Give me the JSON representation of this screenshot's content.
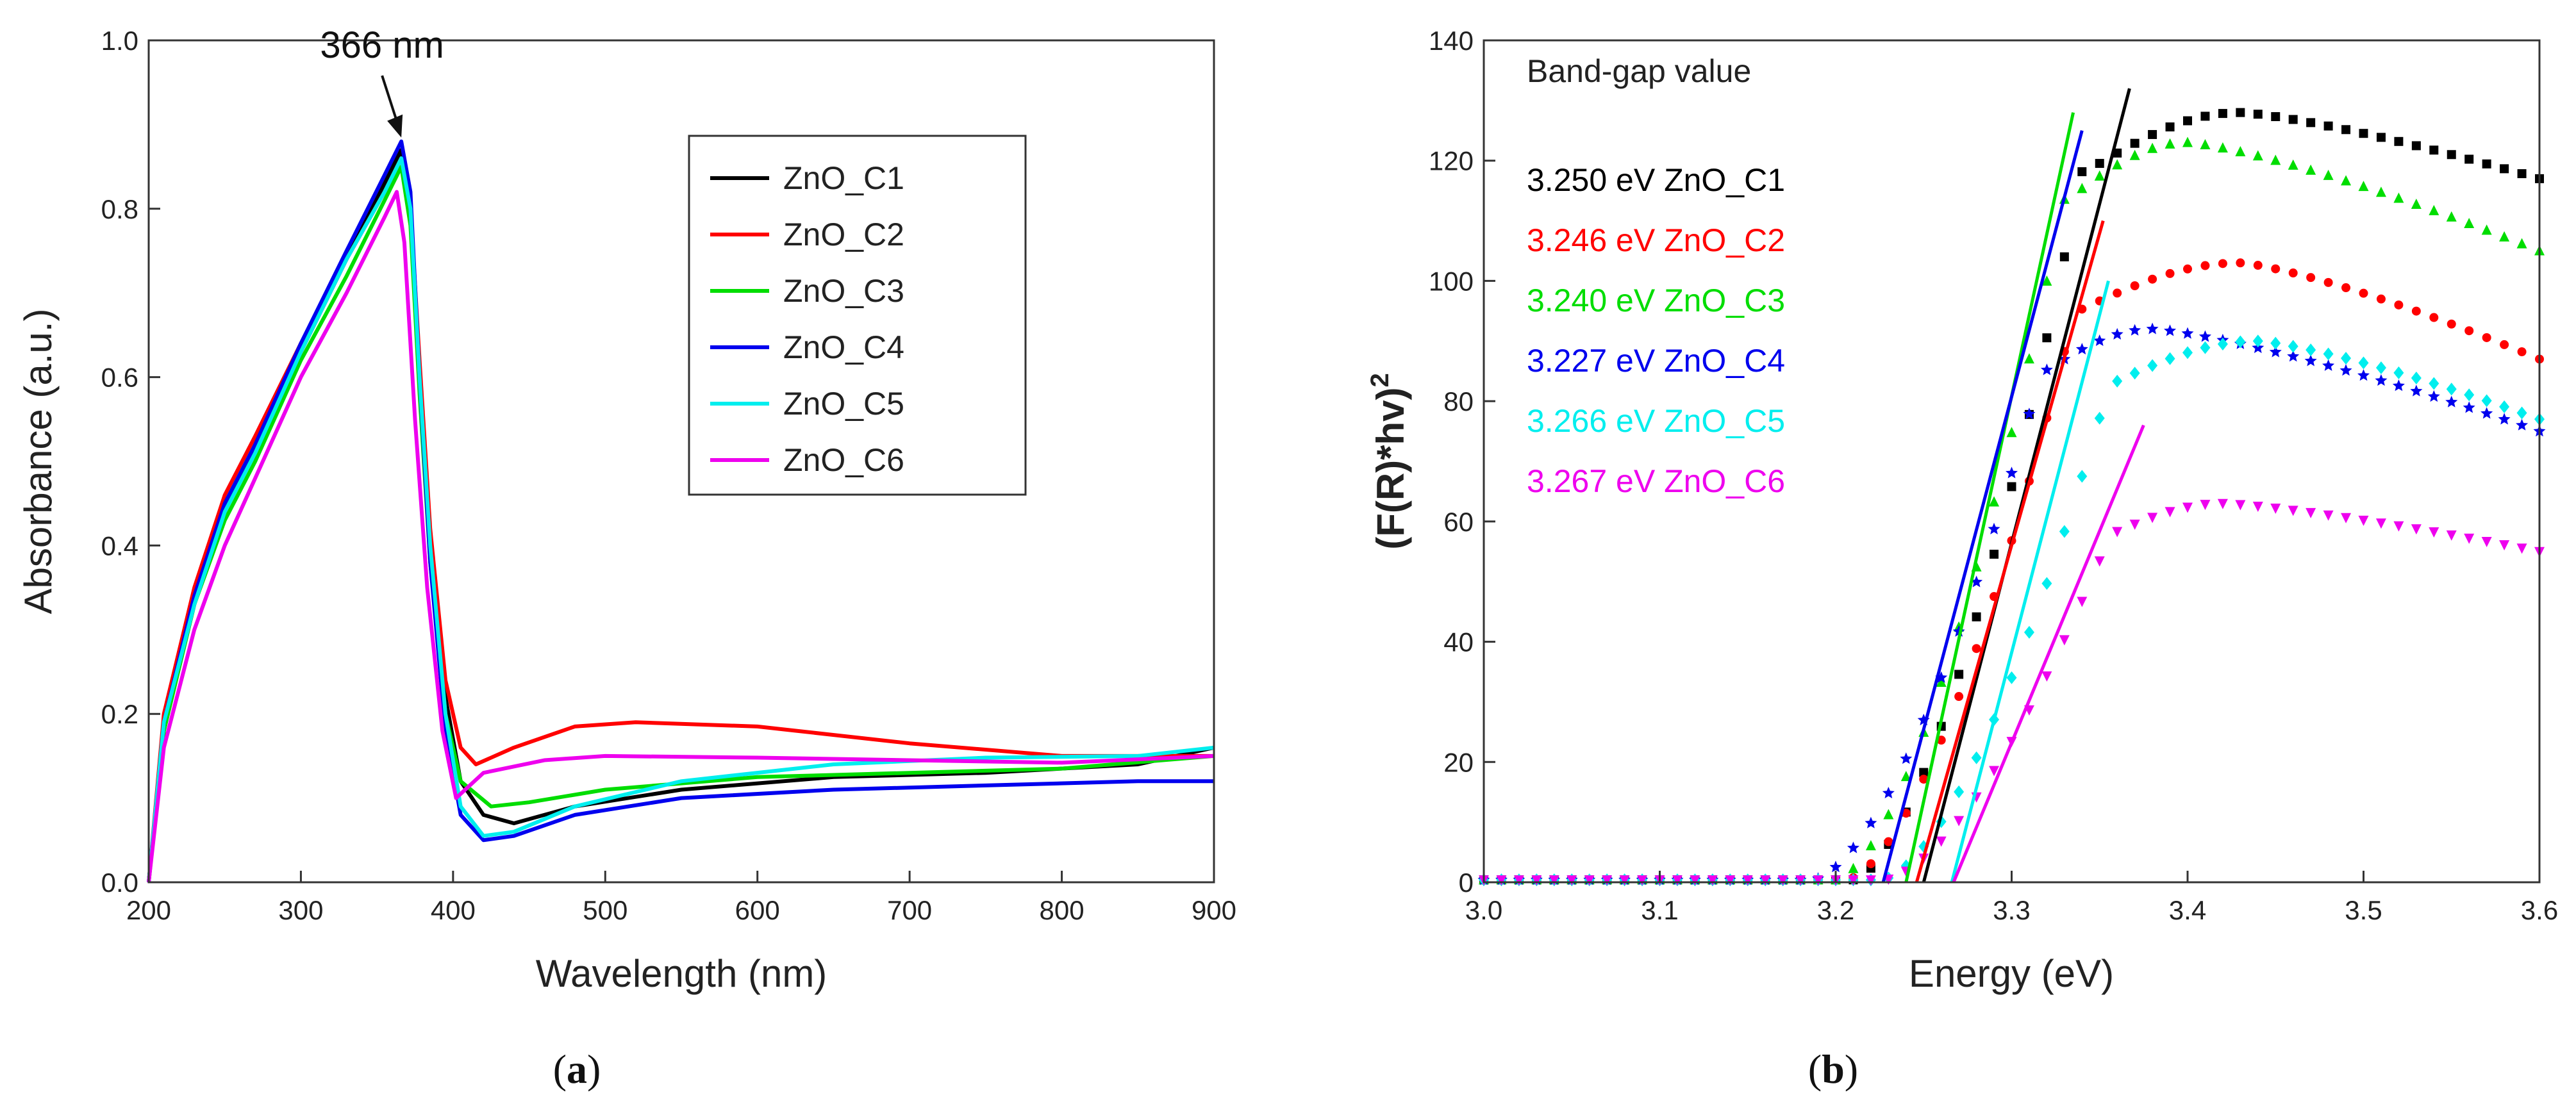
{
  "chart_data": [
    {
      "type": "line",
      "panel": "a",
      "caption_letter": "a",
      "xlabel": "Wavelength (nm)",
      "ylabel": "Absorbance (a.u.)",
      "xlim": [
        200,
        900
      ],
      "ylim": [
        0.0,
        1.0
      ],
      "xticks": [
        "200",
        "300",
        "400",
        "500",
        "600",
        "700",
        "800",
        "900"
      ],
      "yticks": [
        "0.0",
        "0.2",
        "0.4",
        "0.6",
        "0.8",
        "1.0"
      ],
      "annotation": {
        "text": "366 nm",
        "x": 366,
        "y": 0.88
      },
      "legend_position": "top-right",
      "series": [
        {
          "name": "ZnO_C1",
          "color": "#000000",
          "x": [
            200,
            210,
            230,
            250,
            270,
            300,
            330,
            355,
            366,
            372,
            378,
            385,
            395,
            405,
            420,
            440,
            480,
            550,
            650,
            750,
            850,
            900
          ],
          "y": [
            0.0,
            0.18,
            0.33,
            0.44,
            0.52,
            0.63,
            0.74,
            0.83,
            0.87,
            0.8,
            0.6,
            0.4,
            0.22,
            0.12,
            0.08,
            0.07,
            0.09,
            0.11,
            0.125,
            0.13,
            0.14,
            0.16
          ]
        },
        {
          "name": "ZnO_C2",
          "color": "#ff0000",
          "x": [
            200,
            210,
            230,
            250,
            270,
            300,
            330,
            355,
            366,
            372,
            378,
            385,
            395,
            405,
            415,
            440,
            480,
            520,
            600,
            700,
            800,
            900
          ],
          "y": [
            0.0,
            0.2,
            0.35,
            0.46,
            0.53,
            0.64,
            0.74,
            0.82,
            0.86,
            0.8,
            0.62,
            0.42,
            0.24,
            0.16,
            0.14,
            0.16,
            0.185,
            0.19,
            0.185,
            0.165,
            0.15,
            0.15
          ]
        },
        {
          "name": "ZnO_C3",
          "color": "#00dd00",
          "x": [
            200,
            210,
            230,
            250,
            270,
            300,
            330,
            355,
            366,
            372,
            378,
            385,
            395,
            405,
            425,
            450,
            500,
            600,
            700,
            800,
            900
          ],
          "y": [
            0.0,
            0.18,
            0.33,
            0.43,
            0.5,
            0.62,
            0.72,
            0.81,
            0.85,
            0.78,
            0.58,
            0.38,
            0.2,
            0.12,
            0.09,
            0.095,
            0.11,
            0.125,
            0.13,
            0.135,
            0.15
          ]
        },
        {
          "name": "ZnO_C4",
          "color": "#0000ee",
          "x": [
            200,
            210,
            230,
            250,
            270,
            300,
            330,
            355,
            366,
            372,
            378,
            385,
            395,
            405,
            420,
            440,
            480,
            550,
            650,
            750,
            850,
            900
          ],
          "y": [
            0.0,
            0.19,
            0.34,
            0.45,
            0.52,
            0.64,
            0.75,
            0.84,
            0.88,
            0.82,
            0.6,
            0.38,
            0.18,
            0.08,
            0.05,
            0.055,
            0.08,
            0.1,
            0.11,
            0.115,
            0.12,
            0.12
          ]
        },
        {
          "name": "ZnO_C5",
          "color": "#00eeee",
          "x": [
            200,
            210,
            230,
            250,
            270,
            300,
            330,
            355,
            366,
            372,
            378,
            385,
            395,
            405,
            420,
            440,
            480,
            550,
            650,
            750,
            850,
            900
          ],
          "y": [
            0.0,
            0.19,
            0.33,
            0.44,
            0.51,
            0.63,
            0.74,
            0.82,
            0.86,
            0.8,
            0.6,
            0.4,
            0.2,
            0.09,
            0.055,
            0.06,
            0.09,
            0.12,
            0.14,
            0.148,
            0.15,
            0.16
          ]
        },
        {
          "name": "ZnO_C6",
          "color": "#ee00ee",
          "x": [
            200,
            210,
            230,
            250,
            270,
            300,
            330,
            355,
            363,
            368,
            375,
            383,
            393,
            402,
            420,
            460,
            500,
            600,
            700,
            800,
            900
          ],
          "y": [
            0.0,
            0.16,
            0.3,
            0.4,
            0.48,
            0.6,
            0.7,
            0.79,
            0.82,
            0.76,
            0.55,
            0.35,
            0.18,
            0.1,
            0.13,
            0.145,
            0.15,
            0.148,
            0.145,
            0.142,
            0.15
          ]
        }
      ]
    },
    {
      "type": "scatter",
      "panel": "b",
      "caption_letter": "b",
      "xlabel": "Energy (eV)",
      "ylabel_main": "(F(R)*hv)",
      "ylabel_sup": "2",
      "xlim": [
        3.0,
        3.6
      ],
      "ylim": [
        0,
        140
      ],
      "xticks": [
        "3.0",
        "3.1",
        "3.2",
        "3.3",
        "3.4",
        "3.5",
        "3.6"
      ],
      "yticks": [
        "0",
        "20",
        "40",
        "60",
        "80",
        "100",
        "120",
        "140"
      ],
      "legend_title": "Band-gap value",
      "legend_position": "top-left",
      "series": [
        {
          "name": "ZnO_C1",
          "band_gap": "3.250 eV ZnO_C1",
          "color": "#000000",
          "marker": "square",
          "scale": 128,
          "eg": 3.25,
          "peak_x": 3.43,
          "end_y": 117,
          "fit_x": [
            3.25,
            3.367
          ],
          "fit_y": [
            0,
            132
          ]
        },
        {
          "name": "ZnO_C2",
          "band_gap": "3.246 eV ZnO_C2",
          "color": "#ff0000",
          "marker": "circle",
          "scale": 103,
          "eg": 3.246,
          "peak_x": 3.43,
          "end_y": 87,
          "fit_x": [
            3.246,
            3.352
          ],
          "fit_y": [
            0,
            110
          ]
        },
        {
          "name": "ZnO_C3",
          "band_gap": "3.240 eV ZnO_C3",
          "color": "#00dd00",
          "marker": "triangle-up",
          "scale": 123,
          "eg": 3.24,
          "peak_x": 3.4,
          "end_y": 105,
          "fit_x": [
            3.24,
            3.335
          ],
          "fit_y": [
            0,
            128
          ]
        },
        {
          "name": "ZnO_C4",
          "band_gap": "3.227 eV ZnO_C4",
          "color": "#0000ee",
          "marker": "star",
          "scale": 92,
          "eg": 3.227,
          "peak_x": 3.38,
          "end_y": 75,
          "fit_x": [
            3.227,
            3.34
          ],
          "fit_y": [
            0,
            125
          ]
        },
        {
          "name": "ZnO_C5",
          "band_gap": "3.266 eV ZnO_C5",
          "color": "#00eeee",
          "marker": "diamond",
          "scale": 90,
          "eg": 3.266,
          "peak_x": 3.44,
          "end_y": 77,
          "fit_x": [
            3.266,
            3.355
          ],
          "fit_y": [
            0,
            100
          ]
        },
        {
          "name": "ZnO_C6",
          "band_gap": "3.267 eV ZnO_C6",
          "color": "#ee00ee",
          "marker": "triangle-down",
          "scale": 63,
          "eg": 3.267,
          "peak_x": 3.42,
          "end_y": 55,
          "fit_x": [
            3.267,
            3.375
          ],
          "fit_y": [
            0,
            76
          ]
        }
      ]
    }
  ]
}
